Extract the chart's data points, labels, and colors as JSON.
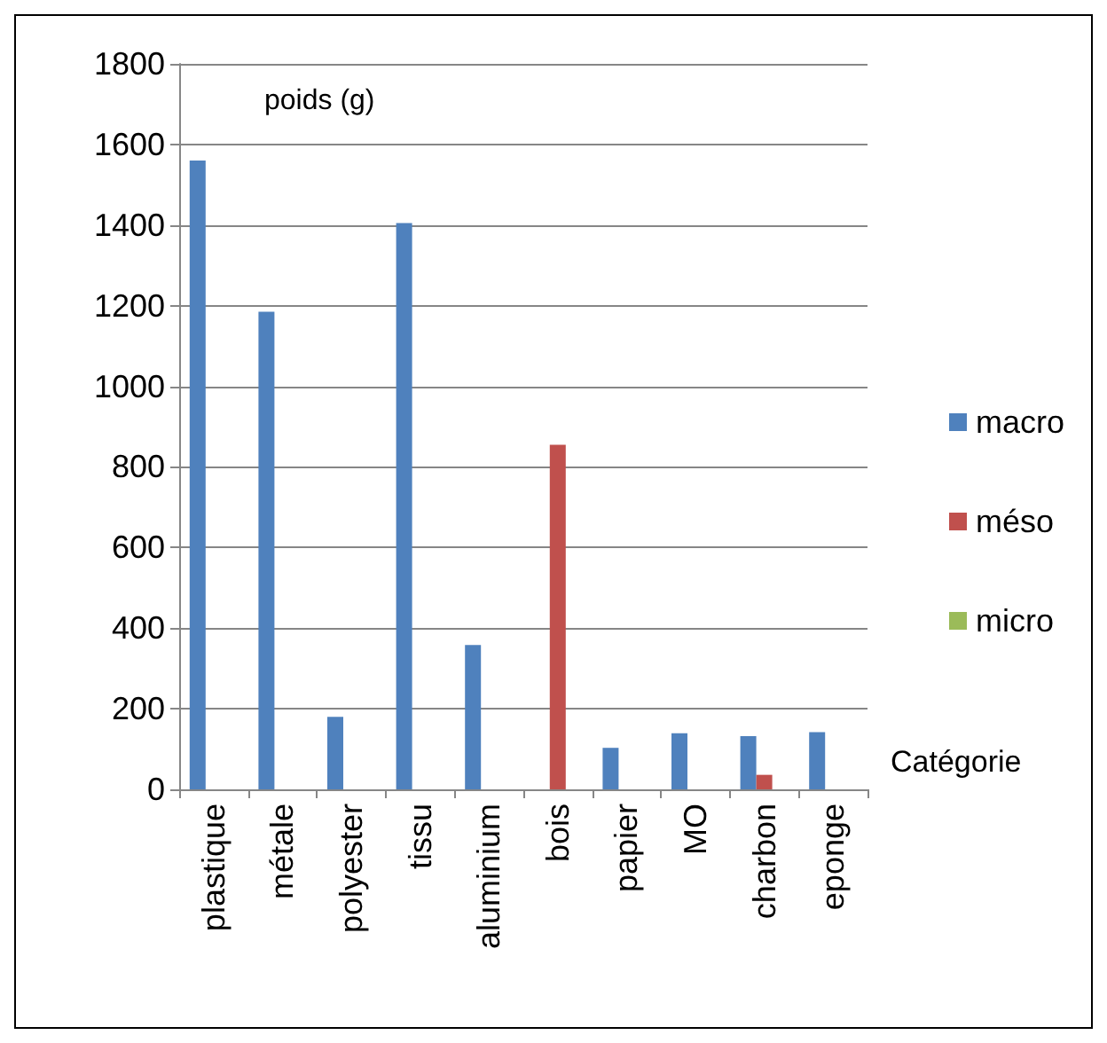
{
  "chart_data": {
    "type": "bar",
    "ylabel": "poids (g)",
    "xlabel": "Catégorie",
    "categories": [
      "plastique",
      "métale",
      "polyester",
      "tissu",
      "aluminium",
      "bois",
      "papier",
      "MO",
      "charbon",
      "eponge"
    ],
    "series": [
      {
        "name": "macro",
        "color": "#4f81bd",
        "values": [
          1560,
          1185,
          180,
          1405,
          358,
          null,
          103,
          139,
          132,
          142
        ]
      },
      {
        "name": "méso",
        "color": "#c0504d",
        "values": [
          null,
          null,
          null,
          null,
          null,
          855,
          null,
          null,
          36,
          null
        ]
      },
      {
        "name": "micro",
        "color": "#9bbb59",
        "values": [
          null,
          null,
          null,
          null,
          null,
          null,
          null,
          null,
          null,
          null
        ]
      }
    ],
    "ylim": [
      0,
      1800
    ],
    "yticks": [
      0,
      200,
      400,
      600,
      800,
      1000,
      1200,
      1400,
      1600,
      1800
    ],
    "grid": "y",
    "legend": "right"
  }
}
